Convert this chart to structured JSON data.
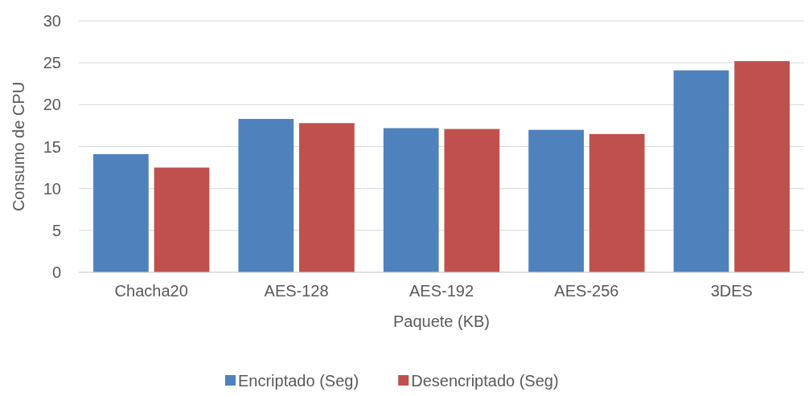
{
  "chart_data": {
    "type": "bar",
    "xlabel": "Paquete (KB)",
    "ylabel": "Consumo de CPU",
    "categories": [
      "Chacha20",
      "AES-128",
      "AES-192",
      "AES-256",
      "3DES"
    ],
    "series": [
      {
        "name": "Encriptado (Seg)",
        "color": "#4f81bd",
        "values": [
          14.1,
          18.3,
          17.2,
          17.0,
          24.1
        ]
      },
      {
        "name": "Desencriptado (Seg)",
        "color": "#c0504d",
        "values": [
          12.5,
          17.8,
          17.1,
          16.5,
          25.2
        ]
      }
    ],
    "ylim": [
      0,
      30
    ],
    "yticks": [
      0,
      5,
      10,
      15,
      20,
      25,
      30
    ],
    "grid": "y",
    "legend": "bottom"
  }
}
